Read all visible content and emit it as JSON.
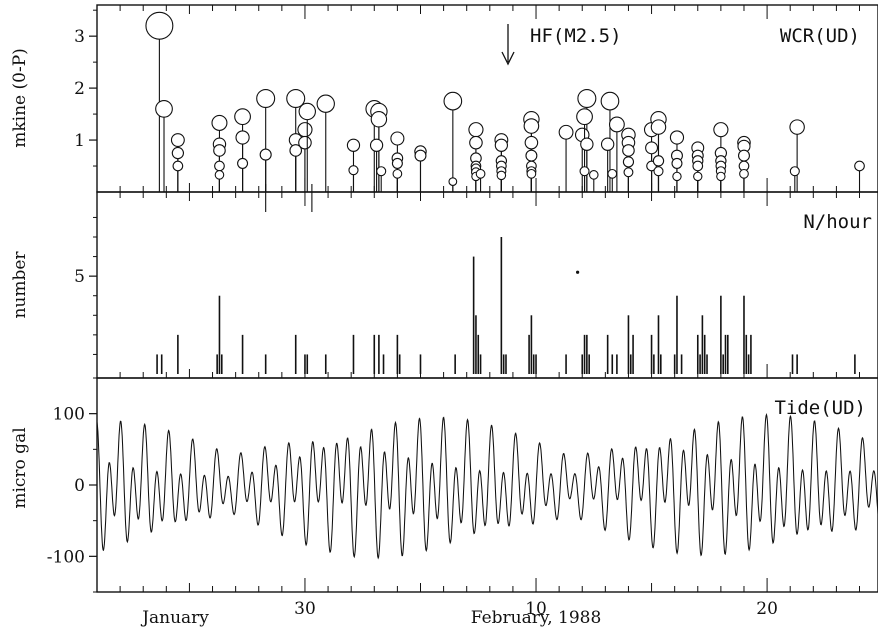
{
  "chart_data": [
    {
      "type": "stem",
      "panel_label": "WCR(UD)",
      "ylabel": "mkine (0-P)",
      "yticks": [
        "1",
        "2",
        "3"
      ],
      "ylim": [
        0,
        3.6
      ],
      "annotation": {
        "text": "HF(M2.5)",
        "x_day": 9.8
      },
      "x_units": "day counted from January 21, 1988",
      "events": [
        [
          2.7,
          3.2
        ],
        [
          2.9,
          1.6
        ],
        [
          3.5,
          1.0
        ],
        [
          3.5,
          0.75
        ],
        [
          3.5,
          0.5
        ],
        [
          5.3,
          1.33
        ],
        [
          5.3,
          0.92
        ],
        [
          5.3,
          0.8
        ],
        [
          5.3,
          0.5
        ],
        [
          5.3,
          0.33
        ],
        [
          6.3,
          1.45
        ],
        [
          6.3,
          1.05
        ],
        [
          6.3,
          0.55
        ],
        [
          7.3,
          1.8
        ],
        [
          7.3,
          0.72
        ],
        [
          8.6,
          1.8
        ],
        [
          8.6,
          1.0
        ],
        [
          8.6,
          0.8
        ],
        [
          9.0,
          1.2
        ],
        [
          9.0,
          0.95
        ],
        [
          9.1,
          1.55
        ],
        [
          9.9,
          1.7
        ],
        [
          11.1,
          0.9
        ],
        [
          11.1,
          0.42
        ],
        [
          12.0,
          1.6
        ],
        [
          12.2,
          1.55
        ],
        [
          12.2,
          1.4
        ],
        [
          12.1,
          0.9
        ],
        [
          12.3,
          0.4
        ],
        [
          13.0,
          1.03
        ],
        [
          13.0,
          0.65
        ],
        [
          13.0,
          0.55
        ],
        [
          13.0,
          0.35
        ],
        [
          14.0,
          0.78
        ],
        [
          14.0,
          0.7
        ],
        [
          15.4,
          1.75
        ],
        [
          15.4,
          0.2
        ],
        [
          16.4,
          1.2
        ],
        [
          16.4,
          0.95
        ],
        [
          16.4,
          0.65
        ],
        [
          16.4,
          0.5
        ],
        [
          16.4,
          0.45
        ],
        [
          16.4,
          0.38
        ],
        [
          16.4,
          0.3
        ],
        [
          16.6,
          0.35
        ],
        [
          17.5,
          1.0
        ],
        [
          17.5,
          0.9
        ],
        [
          17.5,
          0.6
        ],
        [
          17.5,
          0.5
        ],
        [
          17.5,
          0.4
        ],
        [
          17.5,
          0.32
        ],
        [
          18.8,
          1.4
        ],
        [
          18.8,
          1.27
        ],
        [
          18.8,
          0.95
        ],
        [
          18.8,
          0.7
        ],
        [
          18.8,
          0.5
        ],
        [
          18.8,
          0.4
        ],
        [
          18.8,
          0.35
        ],
        [
          20.3,
          1.15
        ],
        [
          21.2,
          1.8
        ],
        [
          21.0,
          1.1
        ],
        [
          21.1,
          1.45
        ],
        [
          21.2,
          0.92
        ],
        [
          21.1,
          0.4
        ],
        [
          21.5,
          0.33
        ],
        [
          22.2,
          1.75
        ],
        [
          22.1,
          0.92
        ],
        [
          22.3,
          0.35
        ],
        [
          22.5,
          1.3
        ],
        [
          23.0,
          1.1
        ],
        [
          23.0,
          0.95
        ],
        [
          23.0,
          0.8
        ],
        [
          23.0,
          0.58
        ],
        [
          23.0,
          0.38
        ],
        [
          24.0,
          1.2
        ],
        [
          24.0,
          0.85
        ],
        [
          24.0,
          0.5
        ],
        [
          24.3,
          1.4
        ],
        [
          24.3,
          1.25
        ],
        [
          24.3,
          0.6
        ],
        [
          24.3,
          0.4
        ],
        [
          25.1,
          1.05
        ],
        [
          25.1,
          0.7
        ],
        [
          25.1,
          0.55
        ],
        [
          25.1,
          0.3
        ],
        [
          26.0,
          0.85
        ],
        [
          26.0,
          0.7
        ],
        [
          26.0,
          0.6
        ],
        [
          26.0,
          0.5
        ],
        [
          26.0,
          0.3
        ],
        [
          27.0,
          1.2
        ],
        [
          27.0,
          0.75
        ],
        [
          27.0,
          0.6
        ],
        [
          27.0,
          0.5
        ],
        [
          27.0,
          0.4
        ],
        [
          27.0,
          0.3
        ],
        [
          28.0,
          0.95
        ],
        [
          28.0,
          0.88
        ],
        [
          28.0,
          0.7
        ],
        [
          28.0,
          0.5
        ],
        [
          28.0,
          0.35
        ],
        [
          30.3,
          1.25
        ],
        [
          30.2,
          0.4
        ],
        [
          33.0,
          0.5
        ]
      ]
    },
    {
      "type": "bar",
      "panel_label": "N/hour",
      "ylabel": "number",
      "yticks": [
        "5"
      ],
      "ylim": [
        0,
        9.3
      ],
      "x_units": "day counted from January 21, 1988",
      "bars": [
        [
          2.6,
          1
        ],
        [
          2.8,
          1
        ],
        [
          3.5,
          2
        ],
        [
          5.2,
          1
        ],
        [
          5.3,
          4
        ],
        [
          5.4,
          1
        ],
        [
          6.3,
          2
        ],
        [
          7.3,
          1
        ],
        [
          8.6,
          2
        ],
        [
          9.0,
          1
        ],
        [
          9.1,
          1
        ],
        [
          9.9,
          1
        ],
        [
          11.1,
          2
        ],
        [
          12.0,
          2
        ],
        [
          12.2,
          2
        ],
        [
          12.4,
          1
        ],
        [
          13.0,
          2
        ],
        [
          13.1,
          1
        ],
        [
          14.0,
          1
        ],
        [
          15.5,
          1
        ],
        [
          16.3,
          6
        ],
        [
          16.4,
          3
        ],
        [
          16.5,
          2
        ],
        [
          16.6,
          1
        ],
        [
          17.5,
          7
        ],
        [
          17.6,
          1
        ],
        [
          17.7,
          1
        ],
        [
          18.7,
          2
        ],
        [
          18.8,
          3
        ],
        [
          18.9,
          1
        ],
        [
          19.0,
          1
        ],
        [
          20.3,
          1
        ],
        [
          21.0,
          1
        ],
        [
          21.1,
          2
        ],
        [
          21.2,
          2
        ],
        [
          21.3,
          1
        ],
        [
          22.1,
          2
        ],
        [
          22.3,
          1
        ],
        [
          22.5,
          1
        ],
        [
          23.0,
          3
        ],
        [
          23.1,
          1
        ],
        [
          23.2,
          2
        ],
        [
          24.0,
          2
        ],
        [
          24.1,
          1
        ],
        [
          24.3,
          3
        ],
        [
          24.4,
          1
        ],
        [
          25.0,
          1
        ],
        [
          25.1,
          4
        ],
        [
          25.3,
          1
        ],
        [
          26.0,
          2
        ],
        [
          26.1,
          1
        ],
        [
          26.2,
          3
        ],
        [
          26.3,
          2
        ],
        [
          26.4,
          1
        ],
        [
          27.0,
          4
        ],
        [
          27.1,
          1
        ],
        [
          27.2,
          2
        ],
        [
          27.3,
          2
        ],
        [
          28.0,
          4
        ],
        [
          28.1,
          2
        ],
        [
          28.2,
          1
        ],
        [
          28.3,
          2
        ],
        [
          30.1,
          1
        ],
        [
          30.3,
          1
        ],
        [
          32.8,
          1
        ]
      ],
      "outlier_dot": [
        20.8,
        5.2
      ]
    },
    {
      "type": "line",
      "panel_label": "Tide(UD)",
      "ylabel": "micro gal",
      "yticks": [
        "-100",
        "0",
        "100"
      ],
      "ylim": [
        -150,
        150
      ],
      "x_units": "day counted from January 21, 1988",
      "tide_model": {
        "semidiurnal_period_days": 0.5175,
        "diurnal_period_days": 1.0758,
        "spring_peak_days": [
          -1.5,
          13.2,
          27.9
        ],
        "amp_min": 45,
        "amp_max": 105,
        "mean": -2
      }
    }
  ],
  "x_axis": {
    "xlim": [
      0,
      33.8
    ],
    "tick_labels": [
      {
        "day": 9,
        "text": "30"
      },
      {
        "day": 19,
        "text": "10"
      },
      {
        "day": 29,
        "text": "20"
      }
    ],
    "month_labels": [
      {
        "day": 3.4,
        "text": "January"
      },
      {
        "day": 19.0,
        "text": "February, 1988"
      }
    ]
  },
  "colors": {
    "ink": "#111111",
    "background": "#ffffff"
  }
}
